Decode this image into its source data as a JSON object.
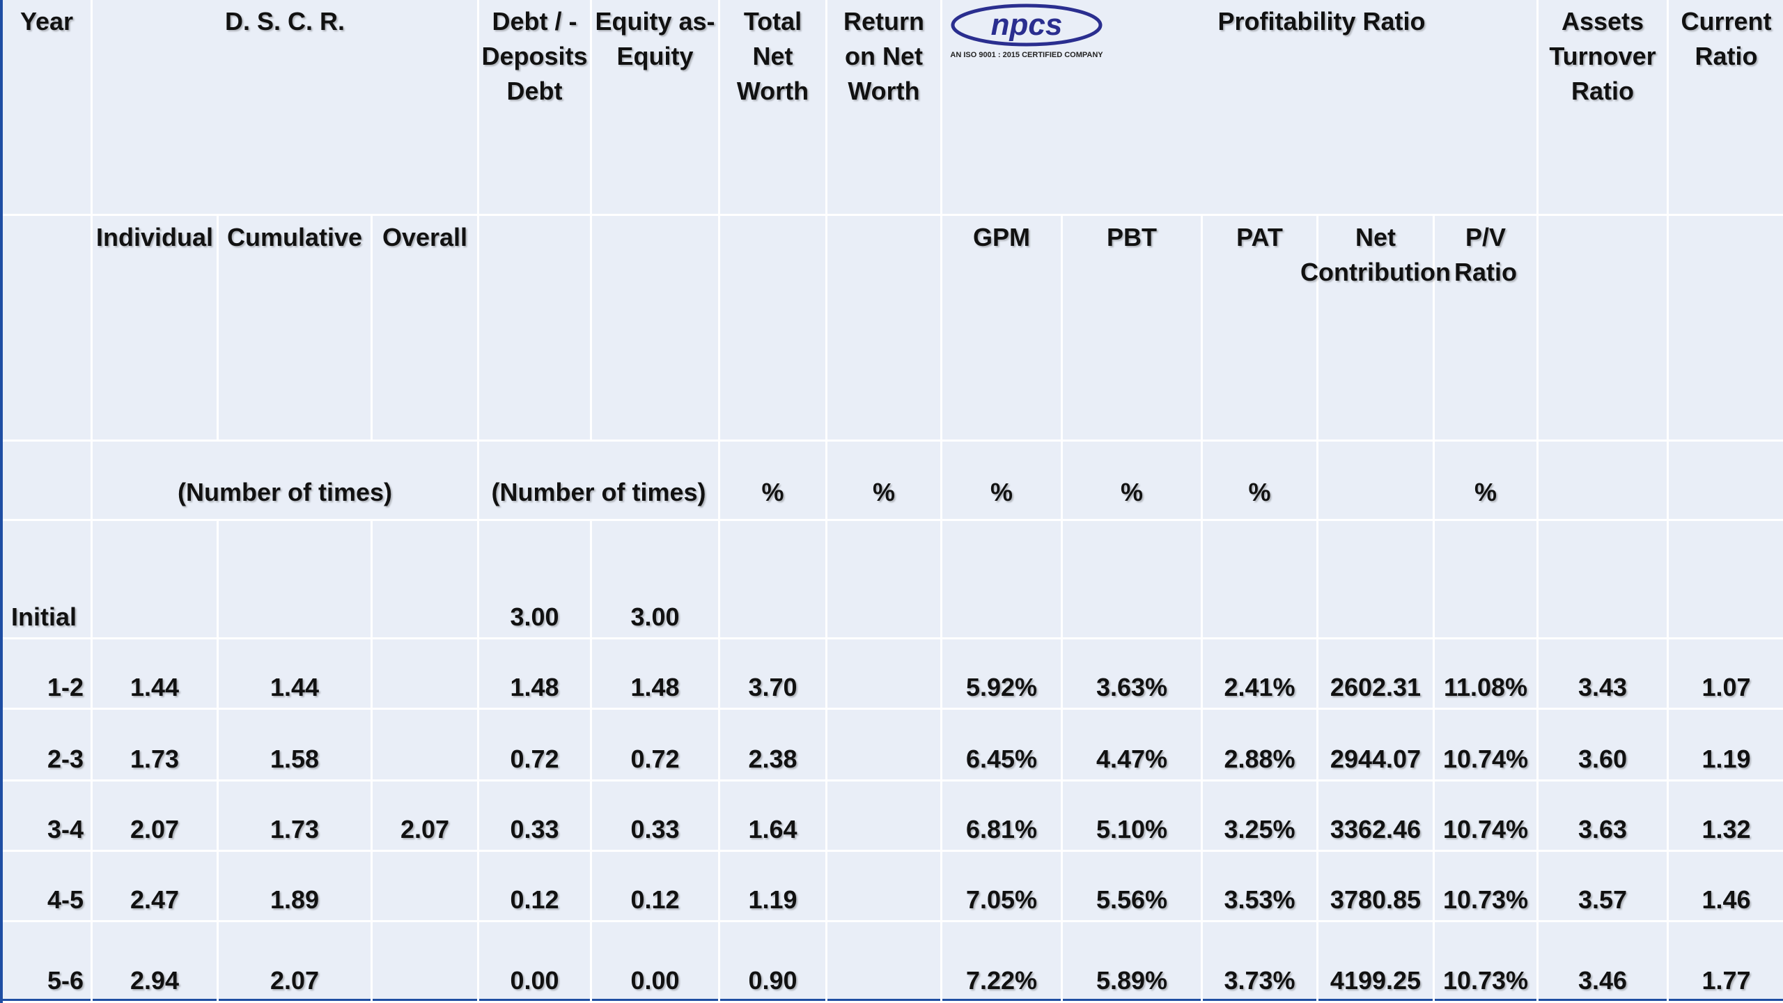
{
  "logo": {
    "name": "npcs",
    "tagline": "AN ISO 9001 : 2015 CERTIFIED COMPANY"
  },
  "headers": [
    "Year",
    "D. S. C. R.",
    "Debt / - Deposits Debt",
    "Equity as- Equity",
    "Total Net Worth",
    "Return on Net Worth",
    "Profitability Ratio",
    "Assets Turnover Ratio",
    "Current Ratio"
  ],
  "subheaders": [
    "Individual",
    "Cumulative",
    "Overall",
    "GPM",
    "PBT",
    "PAT",
    "Net Contribution",
    "P/V Ratio"
  ],
  "units": [
    "(Number of times)",
    "(Number of times)",
    "%",
    "%",
    "%",
    "%",
    "%",
    "%"
  ],
  "rows": [
    [
      "Initial",
      null,
      null,
      null,
      "3.00",
      "3.00",
      null,
      null,
      null,
      null,
      null,
      null,
      null,
      null,
      null
    ],
    [
      "1-2",
      "1.44",
      "1.44",
      null,
      "1.48",
      "1.48",
      "3.70",
      null,
      "5.92%",
      "3.63%",
      "2.41%",
      "2602.31",
      "11.08%",
      "3.43",
      "1.07"
    ],
    [
      "2-3",
      "1.73",
      "1.58",
      null,
      "0.72",
      "0.72",
      "2.38",
      null,
      "6.45%",
      "4.47%",
      "2.88%",
      "2944.07",
      "10.74%",
      "3.60",
      "1.19"
    ],
    [
      "3-4",
      "2.07",
      "1.73",
      "2.07",
      "0.33",
      "0.33",
      "1.64",
      null,
      "6.81%",
      "5.10%",
      "3.25%",
      "3362.46",
      "10.74%",
      "3.63",
      "1.32"
    ],
    [
      "4-5",
      "2.47",
      "1.89",
      null,
      "0.12",
      "0.12",
      "1.19",
      null,
      "7.05%",
      "5.56%",
      "3.53%",
      "3780.85",
      "10.73%",
      "3.57",
      "1.46"
    ],
    [
      "5-6",
      "2.94",
      "2.07",
      null,
      "0.00",
      "0.00",
      "0.90",
      null,
      "7.22%",
      "5.89%",
      "3.73%",
      "4199.25",
      "10.73%",
      "3.46",
      "1.77"
    ]
  ]
}
